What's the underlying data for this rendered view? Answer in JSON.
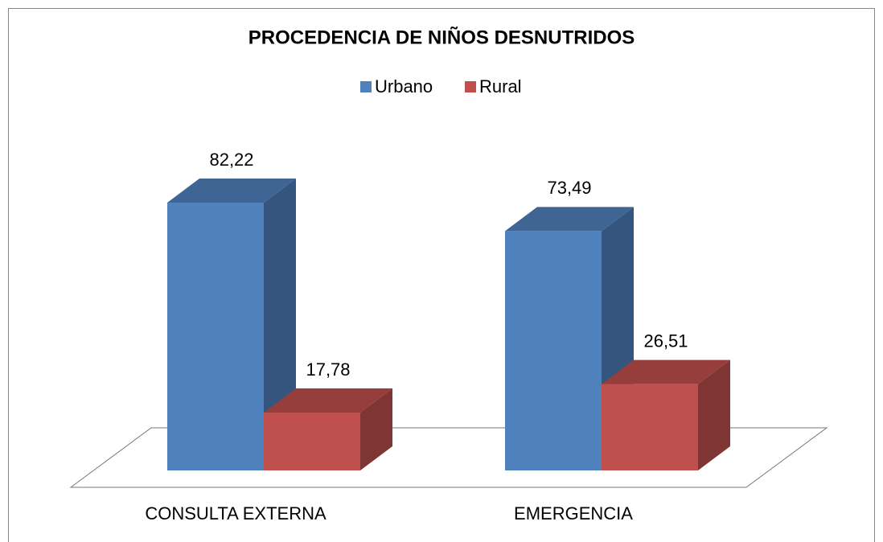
{
  "chart_data": {
    "type": "bar3d",
    "title": "PROCEDENCIA DE NIÑOS DESNUTRIDOS",
    "categories": [
      "CONSULTA EXTERNA",
      "EMERGENCIA"
    ],
    "series": [
      {
        "name": "Urbano",
        "color": "#4f81bd",
        "values": [
          82.22,
          73.49
        ],
        "value_labels": [
          "82,22",
          "73,49"
        ]
      },
      {
        "name": "Rural",
        "color": "#c0504d",
        "values": [
          17.78,
          26.51
        ],
        "value_labels": [
          "17,78",
          "26,51"
        ]
      }
    ],
    "legend": "top"
  }
}
